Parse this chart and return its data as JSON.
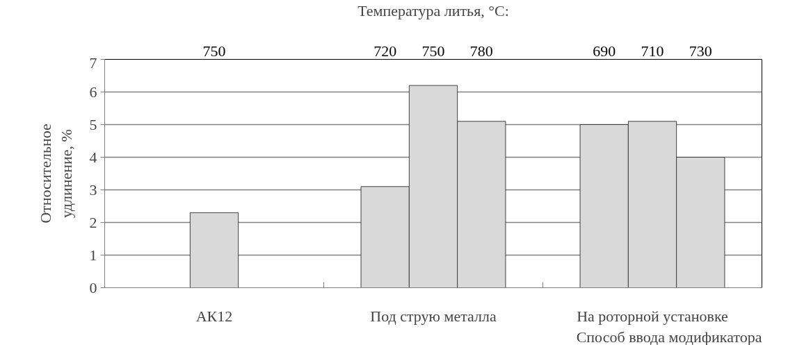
{
  "chart_data": {
    "type": "bar",
    "title": "Температура литья, °C:",
    "xlabel": "Способ ввода модификатора",
    "ylabel": "Относительное\nудлинение, %",
    "categories": [
      "АК12",
      "Под струю металла",
      "На роторной установке"
    ],
    "series": [
      {
        "color": "#d9d9d9",
        "values": [
          null,
          3.1,
          5.0
        ]
      },
      {
        "color": "#d9d9d9",
        "values": [
          2.3,
          6.2,
          5.1
        ]
      },
      {
        "color": "#d9d9d9",
        "values": [
          null,
          5.1,
          4.0
        ]
      }
    ],
    "annotations": [
      "750",
      "720",
      "750",
      "780",
      "690",
      "710",
      "730"
    ],
    "ylim": [
      0,
      7
    ],
    "yticks": [
      0,
      1,
      2,
      3,
      4,
      5,
      6,
      7
    ],
    "grid": "y"
  }
}
